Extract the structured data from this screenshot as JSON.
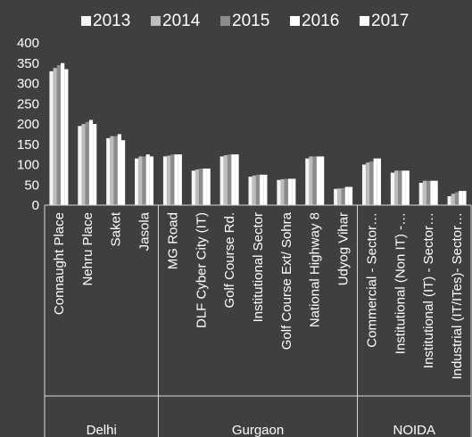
{
  "chart_data": {
    "type": "bar",
    "title": "",
    "xlabel": "",
    "ylabel": "",
    "ylim": [
      0,
      400
    ],
    "yticks": [
      "0",
      "50",
      "100",
      "150",
      "200",
      "250",
      "300",
      "350",
      "400"
    ],
    "legend_position": "top",
    "grid": false,
    "colors": [
      "#f4f4f4",
      "#bdbdbd",
      "#8c8c8c",
      "#ffffff",
      "#ffffff"
    ],
    "legend": [
      "2013",
      "2014",
      "2015",
      "2016",
      "2017"
    ],
    "categories": [
      "Connaught Place",
      "Nehru Place",
      "Saket",
      "Jasola",
      "MG Road",
      "DLF Cyber City (IT)",
      "Golf Course Rd.",
      "Institutional Sector",
      "Golf Course Ext/ Sohra",
      "National Highway 8",
      "Udyog Vihar",
      "Commercial - Sector…",
      "Institutional (Non IT) -…",
      "Institutional (IT) - Sector…",
      "Industrial (IT/ITes)- Sector…"
    ],
    "groups": [
      {
        "name": "Delhi",
        "count": 4
      },
      {
        "name": "Gurgaon",
        "count": 7
      },
      {
        "name": "NOIDA",
        "count": 4
      }
    ],
    "series": [
      {
        "name": "2013",
        "values": [
          330,
          195,
          165,
          115,
          120,
          85,
          120,
          70,
          62,
          115,
          40,
          100,
          80,
          55,
          22
        ]
      },
      {
        "name": "2014",
        "values": [
          338,
          200,
          170,
          120,
          122,
          88,
          123,
          73,
          64,
          120,
          41,
          105,
          85,
          60,
          28
        ]
      },
      {
        "name": "2015",
        "values": [
          345,
          205,
          170,
          120,
          125,
          90,
          125,
          75,
          65,
          120,
          42,
          108,
          85,
          60,
          32
        ]
      },
      {
        "name": "2016",
        "values": [
          350,
          210,
          175,
          125,
          125,
          90,
          125,
          75,
          65,
          120,
          45,
          115,
          85,
          60,
          35
        ]
      },
      {
        "name": "2017",
        "values": [
          335,
          200,
          160,
          120,
          125,
          90,
          125,
          75,
          65,
          120,
          45,
          115,
          85,
          60,
          35
        ]
      }
    ]
  }
}
